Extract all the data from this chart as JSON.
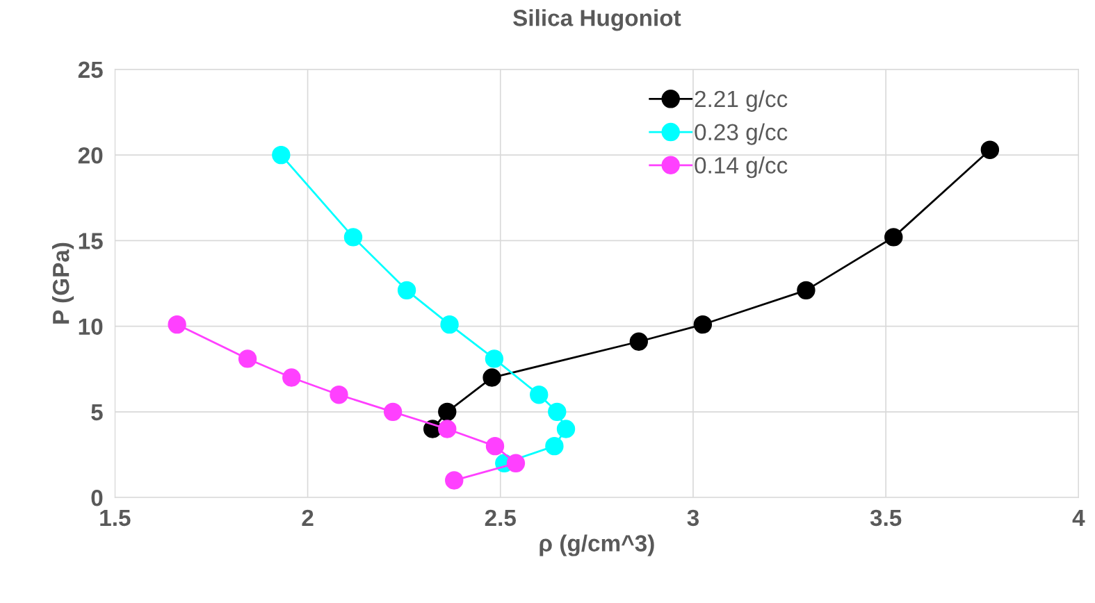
{
  "chart_data": {
    "type": "line",
    "title": "Silica Hugoniot",
    "xlabel": "ρ (g/cm^3)",
    "ylabel": "P (GPa)",
    "xlim": [
      1.5,
      4
    ],
    "xticks": [
      1.5,
      2,
      2.5,
      3,
      3.5,
      4
    ],
    "ylim": [
      0,
      25
    ],
    "yticks": [
      0,
      5,
      10,
      15,
      20,
      25
    ],
    "grid": true,
    "legend": "top right",
    "marker": "circle",
    "line_style": "solid",
    "series": [
      {
        "name": "2.21 g/cc",
        "color": "#000000",
        "x": [
          2.324,
          2.362,
          2.478,
          2.859,
          3.025,
          3.293,
          3.52,
          3.77
        ],
        "values": [
          4.0,
          5.0,
          7.0,
          9.1,
          10.1,
          12.1,
          15.2,
          20.3
        ]
      },
      {
        "name": "0.23 g/cc",
        "color": "#00ffff",
        "x": [
          1.931,
          2.118,
          2.257,
          2.368,
          2.484,
          2.6,
          2.647,
          2.67,
          2.64,
          2.51
        ],
        "values": [
          20.0,
          15.2,
          12.1,
          10.1,
          8.1,
          6.0,
          5.0,
          4.0,
          3.0,
          2.0
        ]
      },
      {
        "name": "0.14 g/cc",
        "color": "#ff40ff",
        "x": [
          1.661,
          1.844,
          1.958,
          2.081,
          2.221,
          2.362,
          2.486,
          2.54,
          2.38
        ],
        "values": [
          10.1,
          8.1,
          7.0,
          6.0,
          5.0,
          4.0,
          3.0,
          2.0,
          1.0
        ]
      }
    ]
  }
}
